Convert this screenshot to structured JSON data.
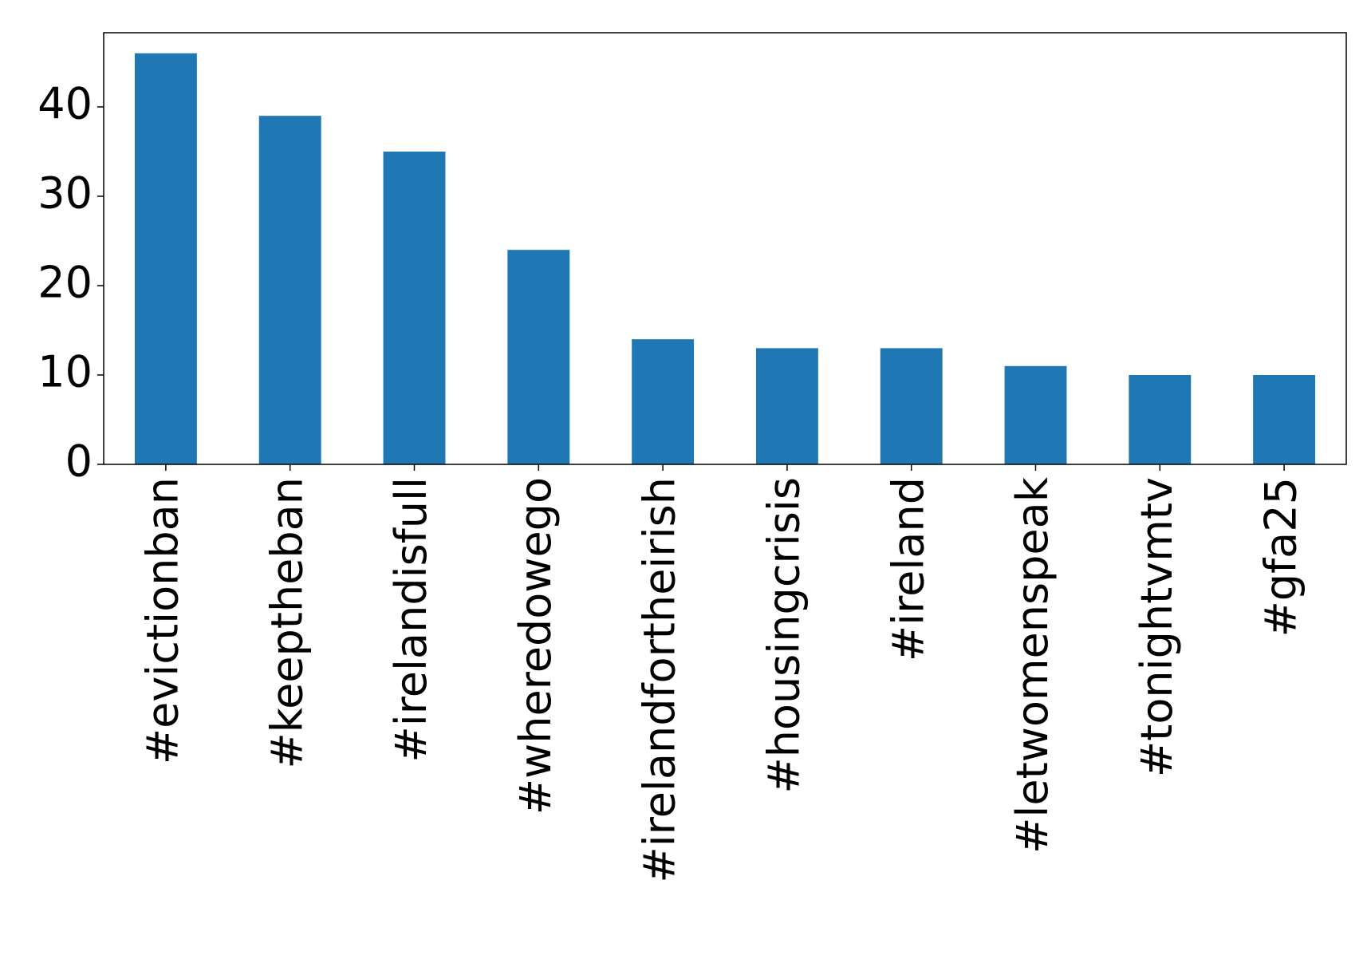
{
  "chart_data": {
    "type": "bar",
    "categories": [
      "#evictionban",
      "#keeptheban",
      "#irelandisfull",
      "#wheredowego",
      "#irelandfortheirish",
      "#housingcrisis",
      "#ireland",
      "#letwomenspeak",
      "#tonightvmtv",
      "#gfa25"
    ],
    "values": [
      46,
      39,
      35,
      24,
      14,
      13,
      13,
      11,
      10,
      10
    ],
    "color": "#1f77b4",
    "ylim": [
      0,
      48.3
    ],
    "yticks": [
      0,
      10,
      20,
      30,
      40
    ],
    "grid": false
  }
}
